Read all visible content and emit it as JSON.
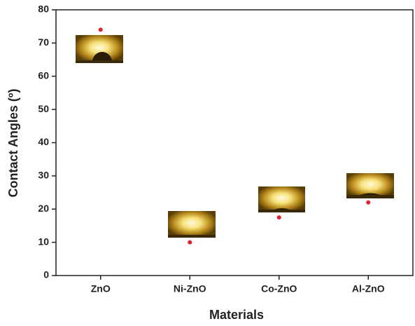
{
  "chart_data": {
    "type": "scatter",
    "categories": [
      "ZnO",
      "Ni-ZnO",
      "Co-ZnO",
      "Al-ZnO"
    ],
    "values": [
      74,
      10,
      17.5,
      22
    ],
    "color": "#e3202a",
    "ylim": [
      0,
      80
    ],
    "yticks": [
      0,
      10,
      20,
      30,
      40,
      50,
      60,
      70,
      80
    ],
    "xlabel": "Materials",
    "ylabel": "Contact Angles (º)"
  }
}
